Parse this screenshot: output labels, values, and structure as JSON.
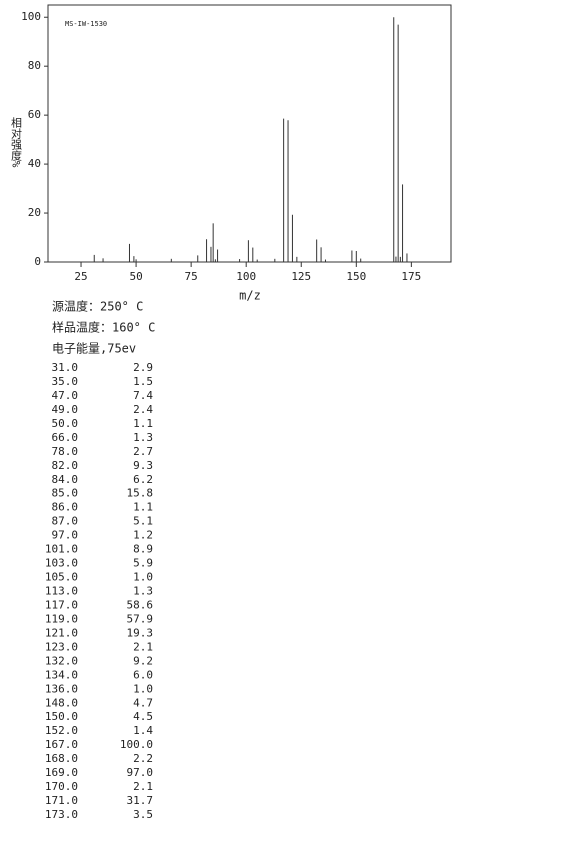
{
  "chart_data": {
    "type": "bar",
    "annotation": "MS-IW-1530",
    "ylabel": "相对强度%",
    "xlabel": "m/z",
    "x": [
      31,
      35,
      47,
      49,
      50,
      66,
      78,
      82,
      84,
      85,
      86,
      87,
      97,
      101,
      103,
      105,
      113,
      117,
      119,
      121,
      123,
      132,
      134,
      136,
      148,
      150,
      152,
      167,
      168,
      169,
      170,
      171,
      173
    ],
    "x_labels": [
      "31.0",
      "35.0",
      "47.0",
      "49.0",
      "50.0",
      "66.0",
      "78.0",
      "82.0",
      "84.0",
      "85.0",
      "86.0",
      "87.0",
      "97.0",
      "101.0",
      "103.0",
      "105.0",
      "113.0",
      "117.0",
      "119.0",
      "121.0",
      "123.0",
      "132.0",
      "134.0",
      "136.0",
      "148.0",
      "150.0",
      "152.0",
      "167.0",
      "168.0",
      "169.0",
      "170.0",
      "171.0",
      "173.0"
    ],
    "values": [
      2.9,
      1.5,
      7.4,
      2.4,
      1.1,
      1.3,
      2.7,
      9.3,
      6.2,
      15.8,
      1.1,
      5.1,
      1.2,
      8.9,
      5.9,
      1.0,
      1.3,
      58.6,
      57.9,
      19.3,
      2.1,
      9.2,
      6.0,
      1.0,
      4.7,
      4.5,
      1.4,
      100.0,
      2.2,
      97.0,
      2.1,
      31.7,
      3.5
    ],
    "value_labels": [
      "2.9",
      "1.5",
      "7.4",
      "2.4",
      "1.1",
      "1.3",
      "2.7",
      "9.3",
      "6.2",
      "15.8",
      "1.1",
      "5.1",
      "1.2",
      "8.9",
      "5.9",
      "1.0",
      "1.3",
      "58.6",
      "57.9",
      "19.3",
      "2.1",
      "9.2",
      "6.0",
      "1.0",
      "4.7",
      "4.5",
      "1.4",
      "100.0",
      "2.2",
      "97.0",
      "2.1",
      "31.7",
      "3.5"
    ],
    "color": "#333333",
    "xlim": [
      10,
      193
    ],
    "ylim": [
      0,
      105
    ],
    "xticks": [
      25,
      50,
      75,
      100,
      125,
      150,
      175
    ],
    "yticks": [
      0,
      20,
      40,
      60,
      80,
      100
    ]
  },
  "conditions": [
    "源温度：250° C",
    "样品温度：160° C",
    "电子能量,75ev"
  ]
}
